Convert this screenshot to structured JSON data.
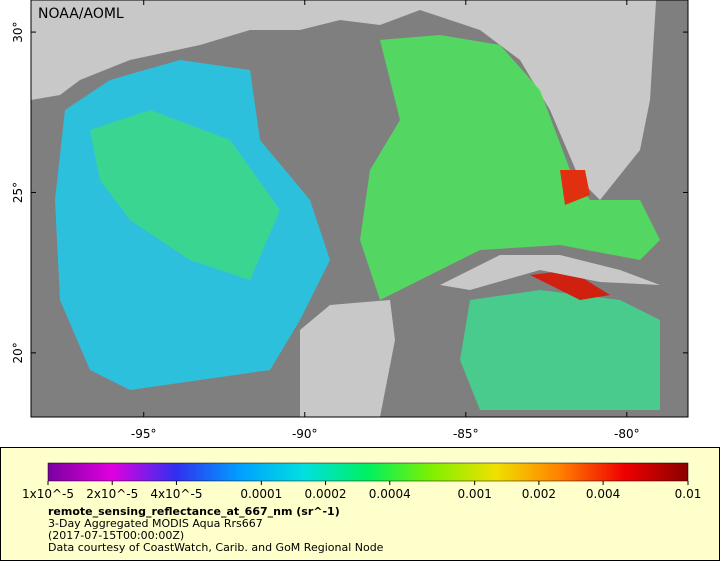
{
  "map": {
    "source_label": "NOAA/AOML",
    "lonlim": [
      -98.5,
      -78.1
    ],
    "latlim": [
      18,
      31
    ],
    "xticks": [
      {
        "value": -95,
        "label": "-95°"
      },
      {
        "value": -90,
        "label": "-90°"
      },
      {
        "value": -85,
        "label": "-85°"
      },
      {
        "value": -80,
        "label": "-80°"
      }
    ],
    "yticks": [
      {
        "value": 20,
        "label": "20°"
      },
      {
        "value": 25,
        "label": "25°"
      },
      {
        "value": 30,
        "label": "30°"
      }
    ]
  },
  "colorbar": {
    "log": true,
    "lim": [
      1e-05,
      0.01
    ],
    "colormap": [
      "#7a00a0",
      "#e000e0",
      "#3030f0",
      "#00a0ff",
      "#00e0e0",
      "#00f060",
      "#80f000",
      "#f0e000",
      "#ff8000",
      "#f00000",
      "#8a0000"
    ],
    "ticks": [
      {
        "value": 1e-05,
        "label": "1x10^-5"
      },
      {
        "value": 2e-05,
        "label": "2x10^-5"
      },
      {
        "value": 4e-05,
        "label": "4x10^-5"
      },
      0.0001,
      0.0002,
      0.0004,
      0.001,
      0.002,
      0.004,
      0.01
    ]
  },
  "legend": {
    "variable": "remote_sensing_reflectance_at_667_nm (sr^-1)",
    "dataset": "3-Day Aggregated MODIS Aqua Rrs667",
    "time": "(2017-07-15T00:00:00Z)",
    "credit": "Data courtesy of CoastWatch, Carib. and GoM Regional Node"
  }
}
